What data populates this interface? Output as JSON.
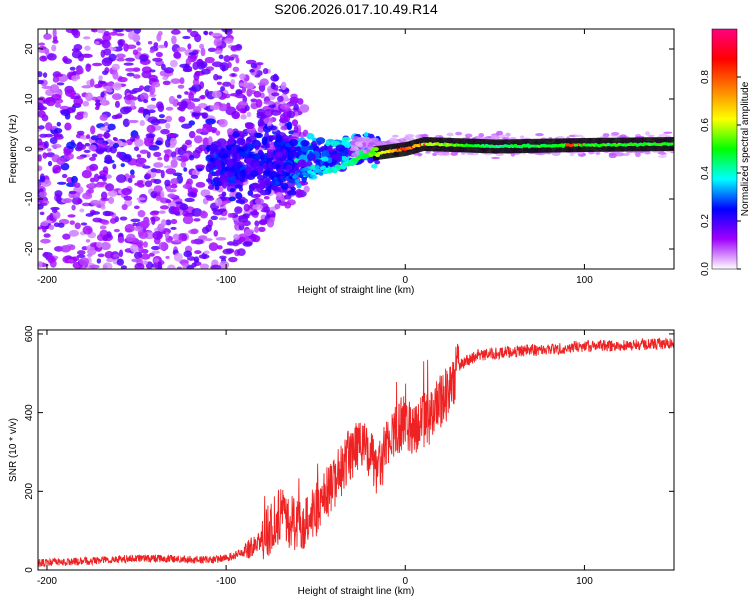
{
  "title": "S206.2026.017.10.49.R14",
  "chart_data": [
    {
      "type": "heatmap",
      "name": "spectrogram",
      "xlabel": "Height of straight line (km)",
      "ylabel": "Frequency (Hz)",
      "xlim": [
        -205,
        150
      ],
      "ylim": [
        -24,
        24
      ],
      "xticks": [
        -200,
        -100,
        0,
        100
      ],
      "yticks": [
        -20,
        -10,
        0,
        10,
        20
      ],
      "colorbar": {
        "label": "Normalized spectral amplitude",
        "range": [
          0,
          1
        ],
        "ticks": [
          0.0,
          0.2,
          0.4,
          0.6,
          0.8
        ],
        "colors": [
          "#ffffff",
          "#a000ff",
          "#0000ff",
          "#00ffff",
          "#00ff00",
          "#ffff00",
          "#ff8000",
          "#ff0000",
          "#ff0080"
        ]
      },
      "description_points": [
        {
          "x": -200,
          "f": 0,
          "amp": 0.15
        },
        {
          "x": -100,
          "f": 0,
          "amp": 0.15
        },
        {
          "x": -70,
          "f": -6,
          "amp": 0.25
        },
        {
          "x": -40,
          "f": -4,
          "amp": 0.4
        },
        {
          "x": -20,
          "f": -1,
          "amp": 0.5
        },
        {
          "x": 0,
          "f": 0,
          "amp": 0.8
        },
        {
          "x": 10,
          "f": 1,
          "amp": 0.6
        },
        {
          "x": 50,
          "f": 0.5,
          "amp": 0.45
        },
        {
          "x": 100,
          "f": 0.8,
          "amp": 0.5
        },
        {
          "x": 150,
          "f": 1,
          "amp": 0.5
        }
      ]
    },
    {
      "type": "line",
      "name": "snr",
      "xlabel": "Height of straight line (km)",
      "ylabel": "SNR (10 * v/v)",
      "xlim": [
        -205,
        150
      ],
      "ylim": [
        0,
        610
      ],
      "xticks": [
        -200,
        -100,
        0,
        100
      ],
      "yticks": [
        0,
        200,
        400,
        600
      ],
      "color": "#ee2222",
      "x": [
        -205,
        -190,
        -170,
        -150,
        -130,
        -110,
        -100,
        -90,
        -80,
        -70,
        -60,
        -50,
        -40,
        -35,
        -30,
        -25,
        -20,
        -15,
        -10,
        -5,
        0,
        5,
        10,
        15,
        20,
        25,
        30,
        40,
        50,
        60,
        70,
        80,
        90,
        100,
        110,
        120,
        130,
        140,
        150
      ],
      "values": [
        18,
        20,
        25,
        30,
        28,
        25,
        30,
        45,
        80,
        140,
        110,
        150,
        220,
        260,
        300,
        320,
        290,
        250,
        320,
        360,
        380,
        360,
        380,
        390,
        430,
        460,
        520,
        545,
        550,
        555,
        560,
        560,
        565,
        570,
        570,
        570,
        572,
        575,
        575
      ]
    }
  ]
}
